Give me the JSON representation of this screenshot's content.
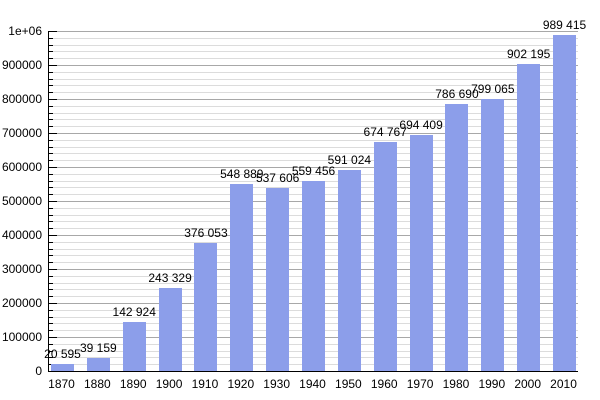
{
  "chart_data": {
    "type": "bar",
    "title": "",
    "xlabel": "",
    "ylabel": "",
    "categories": [
      "1870",
      "1880",
      "1890",
      "1900",
      "1910",
      "1920",
      "1930",
      "1940",
      "1950",
      "1960",
      "1970",
      "1980",
      "1990",
      "2000",
      "2010"
    ],
    "values": [
      20595,
      39159,
      142924,
      243329,
      376053,
      548889,
      537606,
      559456,
      591024,
      674767,
      694409,
      786690,
      799065,
      902195,
      989415
    ],
    "bar_labels": [
      "20 595",
      "39 159",
      "142 924",
      "243 329",
      "376 053",
      "548 889",
      "537 606",
      "559 456",
      "591 024",
      "674 767",
      "694 409",
      "786 690",
      "799 065",
      "902 195",
      "989 415"
    ],
    "ylim": [
      0,
      1000000
    ],
    "ytick_labels": [
      "0",
      "100000",
      "200000",
      "300000",
      "400000",
      "500000",
      "600000",
      "700000",
      "800000",
      "900000",
      "1e+06"
    ],
    "ytick_major_step": 100000,
    "ytick_minor_step": 20000,
    "grid": "on",
    "legend": "none",
    "colors": {
      "bar_fill": "#8C9EEA",
      "axis": "#000000",
      "major_grid": "#A8A8A8",
      "minor_grid": "#DCDCDC",
      "label_text": "#000000",
      "background": "#FFFFFF"
    }
  }
}
